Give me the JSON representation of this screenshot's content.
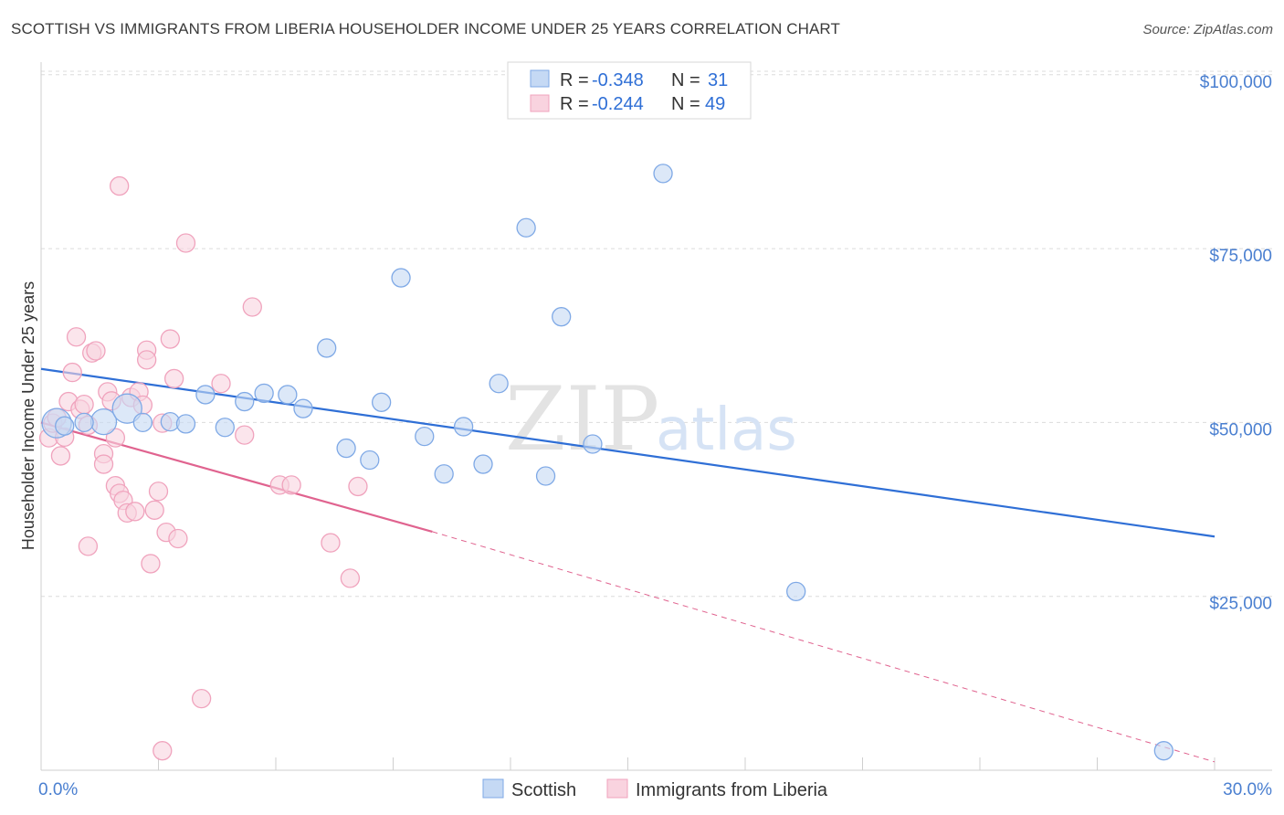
{
  "title": "SCOTTISH VS IMMIGRANTS FROM LIBERIA HOUSEHOLDER INCOME UNDER 25 YEARS CORRELATION CHART",
  "source": "Source: ZipAtlas.com",
  "watermark": {
    "part1": "ZIP",
    "part2": "atlas"
  },
  "legend_box": {
    "rows": [
      {
        "r_label": "R =",
        "r_value": "-0.348",
        "n_label": "N =",
        "n_value": "31"
      },
      {
        "r_label": "R =",
        "r_value": "-0.244",
        "n_label": "N =",
        "n_value": "49"
      }
    ]
  },
  "chart_data": {
    "type": "scatter",
    "title": "SCOTTISH VS IMMIGRANTS FROM LIBERIA HOUSEHOLDER INCOME UNDER 25 YEARS CORRELATION CHART",
    "xlabel": "",
    "ylabel": "Householder Income Under 25 years",
    "xlim": [
      0,
      30
    ],
    "ylim": [
      0,
      105000
    ],
    "x_tick_labels": [
      {
        "value": 0,
        "label": "0.0%"
      },
      {
        "value": 30,
        "label": "30.0%"
      }
    ],
    "y_ticks": [
      {
        "value": 25000,
        "label": "$25,000"
      },
      {
        "value": 50000,
        "label": "$50,000"
      },
      {
        "value": 75000,
        "label": "$75,000"
      },
      {
        "value": 100000,
        "label": "$100,000"
      }
    ],
    "series": [
      {
        "name": "Scottish",
        "color": "#7fa9e6",
        "fill": "#c5d9f4",
        "line_color": "#2f6fd6",
        "points": [
          [
            0.4,
            49900,
            16
          ],
          [
            1.6,
            50100,
            14
          ],
          [
            2.2,
            52000,
            16
          ],
          [
            2.6,
            50000,
            10
          ],
          [
            3.3,
            50100,
            10
          ],
          [
            3.7,
            49800,
            10
          ],
          [
            4.2,
            54000,
            10
          ],
          [
            4.7,
            49300,
            10
          ],
          [
            5.2,
            53000,
            10
          ],
          [
            5.7,
            54200,
            10
          ],
          [
            6.3,
            54000,
            10
          ],
          [
            6.7,
            52000,
            10
          ],
          [
            7.3,
            60700,
            10
          ],
          [
            7.8,
            46300,
            10
          ],
          [
            8.4,
            44600,
            10
          ],
          [
            8.7,
            52900,
            10
          ],
          [
            9.2,
            70800,
            10
          ],
          [
            9.8,
            48000,
            10
          ],
          [
            10.3,
            42600,
            10
          ],
          [
            10.8,
            49400,
            10
          ],
          [
            11.3,
            44000,
            10
          ],
          [
            11.7,
            55600,
            10
          ],
          [
            12.4,
            78000,
            10
          ],
          [
            12.9,
            42300,
            10
          ],
          [
            13.3,
            65200,
            10
          ],
          [
            14.1,
            46900,
            10
          ],
          [
            15.9,
            85800,
            10
          ],
          [
            19.3,
            25700,
            10
          ],
          [
            28.7,
            2800,
            10
          ],
          [
            0.6,
            49500,
            10
          ],
          [
            1.1,
            50000,
            10
          ]
        ],
        "trend": {
          "x": [
            0,
            30
          ],
          "y": [
            57700,
            33600
          ]
        }
      },
      {
        "name": "Immigrants from Liberia",
        "color": "#f0a3bd",
        "fill": "#f9d3df",
        "line_color": "#e0638f",
        "points": [
          [
            0.2,
            47800,
            10
          ],
          [
            0.3,
            49900,
            10
          ],
          [
            0.4,
            50700,
            10
          ],
          [
            0.5,
            45200,
            10
          ],
          [
            0.6,
            47900,
            10
          ],
          [
            0.7,
            53000,
            10
          ],
          [
            0.8,
            57200,
            10
          ],
          [
            0.9,
            62300,
            10
          ],
          [
            1.0,
            51900,
            10
          ],
          [
            1.1,
            52600,
            10
          ],
          [
            1.2,
            49600,
            10
          ],
          [
            1.3,
            60000,
            10
          ],
          [
            1.4,
            60300,
            10
          ],
          [
            1.6,
            45500,
            10
          ],
          [
            1.6,
            44000,
            10
          ],
          [
            1.7,
            54400,
            10
          ],
          [
            1.8,
            53100,
            10
          ],
          [
            1.9,
            47800,
            10
          ],
          [
            1.9,
            40900,
            10
          ],
          [
            2.0,
            39800,
            10
          ],
          [
            2.1,
            38800,
            10
          ],
          [
            2.2,
            37000,
            10
          ],
          [
            2.3,
            53600,
            10
          ],
          [
            2.4,
            37200,
            10
          ],
          [
            2.5,
            54400,
            10
          ],
          [
            2.6,
            52500,
            10
          ],
          [
            2.7,
            60400,
            10
          ],
          [
            2.7,
            59000,
            10
          ],
          [
            2.8,
            29700,
            10
          ],
          [
            2.9,
            37400,
            10
          ],
          [
            3.0,
            40100,
            10
          ],
          [
            3.1,
            49900,
            10
          ],
          [
            3.2,
            34200,
            10
          ],
          [
            3.3,
            62000,
            10
          ],
          [
            1.2,
            32200,
            10
          ],
          [
            2.0,
            84000,
            10
          ],
          [
            3.4,
            56300,
            10
          ],
          [
            3.5,
            33300,
            10
          ],
          [
            3.7,
            75800,
            10
          ],
          [
            4.1,
            10300,
            10
          ],
          [
            3.1,
            2800,
            10
          ],
          [
            4.6,
            55600,
            10
          ],
          [
            5.2,
            48200,
            10
          ],
          [
            5.4,
            66600,
            10
          ],
          [
            6.1,
            41000,
            10
          ],
          [
            6.4,
            41000,
            10
          ],
          [
            7.4,
            32700,
            10
          ],
          [
            7.9,
            27600,
            10
          ],
          [
            8.1,
            40800,
            10
          ]
        ],
        "trend": {
          "x": [
            0,
            10
          ],
          "y": [
            50000,
            34300
          ]
        },
        "trend_extension": {
          "x": [
            10,
            30
          ],
          "y": [
            34300,
            1200
          ]
        }
      }
    ]
  }
}
